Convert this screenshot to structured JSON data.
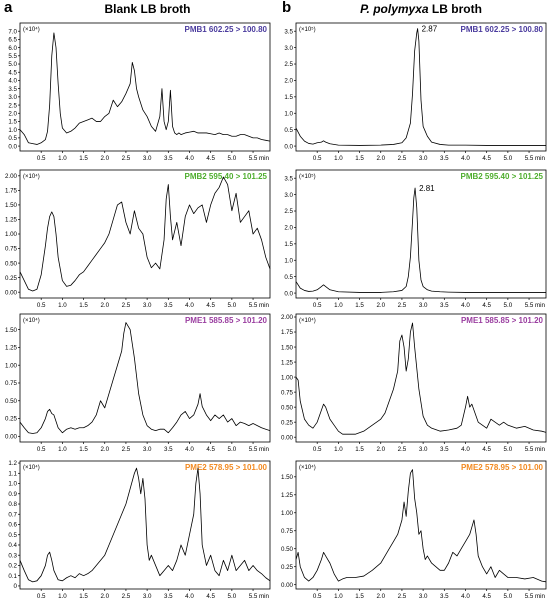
{
  "figure": {
    "panel_a": "a",
    "panel_b": "b",
    "title_a": "Blank LB broth",
    "title_b_italic": "P. polymyxa",
    "title_b_rest": " LB broth",
    "unit_min": "min"
  },
  "colors": {
    "PMB1": "#4b3c9e",
    "PMB2": "#4fae2f",
    "PME1": "#9a3ea0",
    "PME2": "#f28a22",
    "trace": "#000000"
  },
  "chart_data": [
    {
      "type": "line",
      "id": "a1",
      "colorKey": "PMB1",
      "multiplier": "(×10⁴)",
      "label": "PMB1 602.25 > 100.80",
      "xlim": [
        0,
        5.9
      ],
      "ylim": [
        -0.3,
        7.5
      ],
      "yticks": [
        "0.0",
        "0.5",
        "1.0",
        "1.5",
        "2.0",
        "2.5",
        "3.0",
        "3.5",
        "4.0",
        "4.5",
        "5.0",
        "5.5",
        "6.0",
        "6.5",
        "7.0"
      ],
      "xticks": [
        "0.5",
        "1.0",
        "1.5",
        "2.0",
        "2.5",
        "3.0",
        "3.5",
        "4.0",
        "4.5",
        "5.0",
        "5.5"
      ],
      "x": [
        0,
        0.1,
        0.2,
        0.3,
        0.4,
        0.5,
        0.6,
        0.65,
        0.7,
        0.75,
        0.8,
        0.85,
        0.9,
        0.95,
        1.0,
        1.1,
        1.2,
        1.3,
        1.4,
        1.5,
        1.6,
        1.7,
        1.8,
        1.9,
        2.0,
        2.1,
        2.2,
        2.3,
        2.4,
        2.5,
        2.6,
        2.65,
        2.7,
        2.75,
        2.8,
        2.9,
        3.0,
        3.1,
        3.2,
        3.3,
        3.35,
        3.4,
        3.45,
        3.5,
        3.55,
        3.6,
        3.65,
        3.7,
        3.75,
        3.8,
        3.9,
        4.0,
        4.1,
        4.2,
        4.3,
        4.4,
        4.5,
        4.6,
        4.7,
        4.8,
        4.9,
        5.0,
        5.1,
        5.2,
        5.3,
        5.4,
        5.5,
        5.6,
        5.7,
        5.8,
        5.9
      ],
      "y": [
        1.0,
        0.7,
        0.2,
        0.15,
        0.1,
        0.2,
        0.4,
        0.9,
        2.5,
        5.5,
        6.9,
        6.0,
        3.8,
        2.0,
        1.1,
        0.8,
        0.9,
        1.1,
        1.4,
        1.5,
        1.6,
        1.7,
        1.5,
        1.5,
        1.8,
        2.0,
        2.8,
        2.4,
        2.7,
        3.2,
        3.8,
        5.1,
        4.6,
        3.5,
        3.0,
        2.2,
        1.8,
        1.2,
        0.9,
        1.8,
        3.5,
        1.5,
        1.0,
        1.5,
        3.4,
        1.2,
        0.8,
        0.7,
        0.8,
        0.7,
        0.8,
        0.85,
        0.9,
        0.8,
        0.8,
        0.8,
        0.75,
        0.7,
        0.8,
        0.7,
        0.7,
        0.6,
        0.6,
        0.7,
        0.7,
        0.6,
        0.5,
        0.5,
        0.4,
        0.35,
        0.3
      ]
    },
    {
      "type": "line",
      "id": "b1",
      "colorKey": "PMB1",
      "multiplier": "(×10⁵)",
      "label": "PMB1 602.25 > 100.80",
      "xlim": [
        0,
        5.9
      ],
      "ylim": [
        -0.15,
        3.75
      ],
      "yticks": [
        "0.0",
        "0.5",
        "1.0",
        "1.5",
        "2.0",
        "2.5",
        "3.0",
        "3.5"
      ],
      "xticks": [
        "0.5",
        "1.0",
        "1.5",
        "2.0",
        "2.5",
        "3.0",
        "3.5",
        "4.0",
        "4.5",
        "5.0",
        "5.5"
      ],
      "peak_label": "2.87",
      "peak_x": 2.87,
      "peak_y": 3.58,
      "x": [
        0,
        0.1,
        0.2,
        0.3,
        0.4,
        0.5,
        0.6,
        0.65,
        0.7,
        0.8,
        1.0,
        1.5,
        2.0,
        2.3,
        2.5,
        2.6,
        2.7,
        2.75,
        2.8,
        2.85,
        2.87,
        2.9,
        2.95,
        3.0,
        3.05,
        3.1,
        3.2,
        3.4,
        3.6,
        4.0,
        4.5,
        5.0,
        5.5,
        5.9
      ],
      "y": [
        0.55,
        0.3,
        0.15,
        0.08,
        0.06,
        0.1,
        0.12,
        0.16,
        0.12,
        0.07,
        0.03,
        0.02,
        0.03,
        0.05,
        0.1,
        0.25,
        0.7,
        1.6,
        2.9,
        3.45,
        3.58,
        3.2,
        1.4,
        0.6,
        0.45,
        0.3,
        0.12,
        0.05,
        0.03,
        0.03,
        0.02,
        0.02,
        0.02,
        0.02
      ]
    },
    {
      "type": "line",
      "id": "a2",
      "colorKey": "PMB2",
      "multiplier": "(×10⁴)",
      "label": "PMB2 595.40 > 101.25",
      "xlim": [
        0,
        5.9
      ],
      "ylim": [
        -0.1,
        2.1
      ],
      "yticks": [
        "0.00",
        "0.25",
        "0.50",
        "0.75",
        "1.00",
        "1.25",
        "1.50",
        "1.75",
        "2.00"
      ],
      "xticks": [
        "0.5",
        "1.0",
        "1.5",
        "2.0",
        "2.5",
        "3.0",
        "3.5",
        "4.0",
        "4.5",
        "5.0",
        "5.5"
      ],
      "x": [
        0,
        0.1,
        0.2,
        0.3,
        0.4,
        0.5,
        0.6,
        0.65,
        0.7,
        0.75,
        0.8,
        0.85,
        0.9,
        1.0,
        1.1,
        1.2,
        1.3,
        1.4,
        1.5,
        1.6,
        1.7,
        1.8,
        1.9,
        2.0,
        2.1,
        2.2,
        2.3,
        2.4,
        2.5,
        2.6,
        2.7,
        2.8,
        2.9,
        3.0,
        3.1,
        3.2,
        3.3,
        3.4,
        3.45,
        3.5,
        3.55,
        3.6,
        3.7,
        3.8,
        3.9,
        4.0,
        4.1,
        4.2,
        4.3,
        4.4,
        4.5,
        4.6,
        4.7,
        4.8,
        4.9,
        5.0,
        5.1,
        5.2,
        5.3,
        5.4,
        5.5,
        5.6,
        5.7,
        5.8,
        5.9
      ],
      "y": [
        0.35,
        0.2,
        0.05,
        0.02,
        0.05,
        0.3,
        0.8,
        1.1,
        1.3,
        1.38,
        1.3,
        1.0,
        0.6,
        0.2,
        0.1,
        0.12,
        0.2,
        0.3,
        0.35,
        0.45,
        0.55,
        0.65,
        0.75,
        0.85,
        1.0,
        1.25,
        1.5,
        1.55,
        1.2,
        1.0,
        1.4,
        1.1,
        1.0,
        0.6,
        0.42,
        0.5,
        0.4,
        0.9,
        1.6,
        1.85,
        1.3,
        0.9,
        1.2,
        0.8,
        1.3,
        1.5,
        1.35,
        1.45,
        1.5,
        1.2,
        1.5,
        1.7,
        1.8,
        1.98,
        1.85,
        1.4,
        1.7,
        1.2,
        1.3,
        1.4,
        1.0,
        1.1,
        0.9,
        0.6,
        0.4
      ]
    },
    {
      "type": "line",
      "id": "b2",
      "colorKey": "PMB2",
      "multiplier": "(×10⁵)",
      "label": "PMB2 595.40 > 101.25",
      "xlim": [
        0,
        5.9
      ],
      "ylim": [
        -0.15,
        3.75
      ],
      "yticks": [
        "0.0",
        "0.5",
        "1.0",
        "1.5",
        "2.0",
        "2.5",
        "3.0",
        "3.5"
      ],
      "xticks": [
        "0.5",
        "1.0",
        "1.5",
        "2.0",
        "2.5",
        "3.0",
        "3.5",
        "4.0",
        "4.5",
        "5.0",
        "5.5"
      ],
      "peak_label": "2.81",
      "peak_x": 2.81,
      "peak_y": 3.2,
      "x": [
        0,
        0.1,
        0.2,
        0.3,
        0.4,
        0.5,
        0.6,
        0.65,
        0.7,
        0.8,
        1.0,
        1.5,
        2.0,
        2.3,
        2.5,
        2.6,
        2.65,
        2.7,
        2.75,
        2.78,
        2.81,
        2.85,
        2.9,
        2.95,
        3.0,
        3.1,
        3.2,
        3.4,
        3.6,
        4.0,
        4.5,
        5.0,
        5.5,
        5.9
      ],
      "y": [
        0.35,
        0.15,
        0.08,
        0.05,
        0.06,
        0.1,
        0.2,
        0.25,
        0.2,
        0.1,
        0.04,
        0.02,
        0.02,
        0.04,
        0.08,
        0.2,
        0.5,
        1.1,
        2.2,
        2.9,
        3.2,
        2.6,
        1.0,
        0.4,
        0.2,
        0.1,
        0.06,
        0.04,
        0.03,
        0.02,
        0.02,
        0.02,
        0.02,
        0.02
      ]
    },
    {
      "type": "line",
      "id": "a3",
      "colorKey": "PME1",
      "multiplier": "(×10⁴)",
      "label": "PME1 585.85 > 101.20",
      "xlim": [
        0,
        5.9
      ],
      "ylim": [
        -0.08,
        1.72
      ],
      "yticks": [
        "0.00",
        "0.25",
        "0.50",
        "0.75",
        "1.00",
        "1.25",
        "1.50"
      ],
      "xticks": [
        "0.5",
        "1.0",
        "1.5",
        "2.0",
        "2.5",
        "3.0",
        "3.5",
        "4.0",
        "4.5",
        "5.0",
        "5.5"
      ],
      "x": [
        0,
        0.1,
        0.2,
        0.3,
        0.4,
        0.5,
        0.6,
        0.65,
        0.7,
        0.75,
        0.8,
        0.9,
        1.0,
        1.1,
        1.2,
        1.3,
        1.4,
        1.5,
        1.6,
        1.7,
        1.8,
        1.9,
        2.0,
        2.1,
        2.2,
        2.3,
        2.4,
        2.45,
        2.5,
        2.55,
        2.6,
        2.7,
        2.8,
        2.9,
        3.0,
        3.1,
        3.2,
        3.3,
        3.4,
        3.5,
        3.6,
        3.7,
        3.8,
        3.9,
        4.0,
        4.1,
        4.2,
        4.25,
        4.3,
        4.4,
        4.5,
        4.6,
        4.7,
        4.8,
        4.9,
        5.0,
        5.1,
        5.2,
        5.3,
        5.4,
        5.5,
        5.6,
        5.7,
        5.8,
        5.9
      ],
      "y": [
        0.2,
        0.12,
        0.05,
        0.04,
        0.05,
        0.12,
        0.25,
        0.35,
        0.38,
        0.32,
        0.3,
        0.12,
        0.05,
        0.1,
        0.12,
        0.1,
        0.12,
        0.12,
        0.15,
        0.2,
        0.3,
        0.5,
        0.4,
        0.6,
        0.8,
        1.0,
        1.2,
        1.45,
        1.6,
        1.55,
        1.5,
        1.1,
        0.6,
        0.3,
        0.15,
        0.1,
        0.08,
        0.1,
        0.1,
        0.05,
        0.12,
        0.2,
        0.3,
        0.35,
        0.25,
        0.3,
        0.45,
        0.6,
        0.42,
        0.3,
        0.22,
        0.3,
        0.25,
        0.3,
        0.2,
        0.25,
        0.15,
        0.2,
        0.18,
        0.15,
        0.18,
        0.15,
        0.12,
        0.1,
        0.08
      ]
    },
    {
      "type": "line",
      "id": "b3",
      "colorKey": "PME1",
      "multiplier": "(×10⁴)",
      "label": "PME1 585.85 > 101.20",
      "xlim": [
        0,
        5.9
      ],
      "ylim": [
        -0.08,
        2.05
      ],
      "yticks": [
        "0.00",
        "0.25",
        "0.50",
        "0.75",
        "1.00",
        "1.25",
        "1.50",
        "1.75",
        "2.00"
      ],
      "xticks": [
        "0.5",
        "1.0",
        "1.5",
        "2.0",
        "2.5",
        "3.0",
        "3.5",
        "4.0",
        "4.5",
        "5.0",
        "5.5"
      ],
      "x": [
        0,
        0.05,
        0.1,
        0.2,
        0.3,
        0.4,
        0.5,
        0.6,
        0.65,
        0.7,
        0.8,
        0.9,
        1.0,
        1.1,
        1.2,
        1.4,
        1.6,
        1.8,
        2.0,
        2.1,
        2.2,
        2.3,
        2.4,
        2.45,
        2.5,
        2.55,
        2.6,
        2.65,
        2.7,
        2.75,
        2.8,
        2.9,
        3.0,
        3.1,
        3.2,
        3.4,
        3.6,
        3.8,
        3.9,
        4.0,
        4.05,
        4.1,
        4.15,
        4.2,
        4.3,
        4.4,
        4.5,
        4.6,
        4.7,
        4.8,
        4.9,
        5.0,
        5.2,
        5.4,
        5.6,
        5.8,
        5.9
      ],
      "y": [
        1.0,
        0.95,
        0.6,
        0.3,
        0.2,
        0.15,
        0.25,
        0.45,
        0.55,
        0.5,
        0.3,
        0.2,
        0.1,
        0.05,
        0.05,
        0.05,
        0.1,
        0.2,
        0.3,
        0.4,
        0.6,
        0.8,
        1.1,
        1.6,
        1.7,
        1.5,
        1.1,
        1.3,
        1.75,
        1.9,
        1.5,
        0.8,
        0.35,
        0.2,
        0.15,
        0.1,
        0.12,
        0.15,
        0.2,
        0.5,
        0.68,
        0.5,
        0.55,
        0.45,
        0.25,
        0.2,
        0.15,
        0.3,
        0.25,
        0.2,
        0.25,
        0.2,
        0.15,
        0.18,
        0.12,
        0.1,
        0.08
      ]
    },
    {
      "type": "line",
      "id": "a4",
      "colorKey": "PME2",
      "multiplier": "(×10⁴)",
      "label": "PME2 578.95 > 101.00",
      "xlim": [
        0,
        5.9
      ],
      "ylim": [
        -0.03,
        1.22
      ],
      "yticks": [
        "0",
        "0.1",
        "0.2",
        "0.3",
        "0.4",
        "0.5",
        "0.6",
        "0.7",
        "0.8",
        "0.9",
        "1.0",
        "1.1",
        "1.2"
      ],
      "xticks": [
        "0.5",
        "1.0",
        "1.5",
        "2.0",
        "2.5",
        "3.0",
        "3.5",
        "4.0",
        "4.5",
        "5.0",
        "5.5"
      ],
      "x": [
        0,
        0.1,
        0.2,
        0.3,
        0.4,
        0.5,
        0.6,
        0.65,
        0.7,
        0.75,
        0.8,
        0.9,
        1.0,
        1.1,
        1.2,
        1.3,
        1.4,
        1.5,
        1.6,
        1.7,
        1.8,
        1.9,
        2.0,
        2.1,
        2.2,
        2.3,
        2.4,
        2.5,
        2.6,
        2.7,
        2.75,
        2.8,
        2.85,
        2.9,
        2.95,
        3.0,
        3.05,
        3.1,
        3.2,
        3.3,
        3.4,
        3.5,
        3.6,
        3.7,
        3.8,
        3.9,
        4.0,
        4.1,
        4.15,
        4.2,
        4.25,
        4.3,
        4.4,
        4.5,
        4.6,
        4.7,
        4.8,
        4.9,
        5.0,
        5.1,
        5.2,
        5.3,
        5.4,
        5.5,
        5.6,
        5.7,
        5.8,
        5.9
      ],
      "y": [
        0.25,
        0.15,
        0.06,
        0.04,
        0.05,
        0.1,
        0.2,
        0.3,
        0.33,
        0.25,
        0.15,
        0.06,
        0.05,
        0.08,
        0.1,
        0.08,
        0.12,
        0.1,
        0.12,
        0.15,
        0.2,
        0.25,
        0.3,
        0.4,
        0.5,
        0.6,
        0.7,
        0.8,
        0.95,
        1.1,
        1.15,
        1.05,
        0.9,
        1.05,
        0.85,
        0.4,
        0.25,
        0.3,
        0.2,
        0.1,
        0.15,
        0.2,
        0.15,
        0.25,
        0.4,
        0.3,
        0.5,
        0.7,
        1.0,
        1.15,
        0.9,
        0.4,
        0.2,
        0.3,
        0.15,
        0.1,
        0.25,
        0.15,
        0.3,
        0.15,
        0.2,
        0.25,
        0.15,
        0.2,
        0.15,
        0.12,
        0.08,
        0.05
      ]
    },
    {
      "type": "line",
      "id": "b4",
      "colorKey": "PME2",
      "multiplier": "(×10⁴)",
      "label": "PME2 578.95 > 101.00",
      "xlim": [
        0,
        5.9
      ],
      "ylim": [
        -0.06,
        1.72
      ],
      "yticks": [
        "0.00",
        "0.25",
        "0.50",
        "0.75",
        "1.00",
        "1.25",
        "1.50"
      ],
      "xticks": [
        "0.5",
        "1.0",
        "1.5",
        "2.0",
        "2.5",
        "3.0",
        "3.5",
        "4.0",
        "4.5",
        "5.0",
        "5.5"
      ],
      "x": [
        0,
        0.05,
        0.1,
        0.2,
        0.3,
        0.4,
        0.5,
        0.6,
        0.65,
        0.7,
        0.75,
        0.8,
        0.9,
        1.0,
        1.1,
        1.2,
        1.4,
        1.6,
        1.8,
        2.0,
        2.1,
        2.2,
        2.3,
        2.4,
        2.5,
        2.55,
        2.6,
        2.65,
        2.7,
        2.75,
        2.8,
        2.85,
        2.9,
        2.95,
        3.0,
        3.05,
        3.1,
        3.2,
        3.3,
        3.4,
        3.5,
        3.6,
        3.7,
        3.8,
        3.9,
        4.0,
        4.1,
        4.15,
        4.2,
        4.25,
        4.3,
        4.4,
        4.5,
        4.6,
        4.7,
        4.8,
        4.9,
        5.0,
        5.2,
        5.4,
        5.6,
        5.8,
        5.9
      ],
      "y": [
        0.35,
        0.45,
        0.25,
        0.1,
        0.05,
        0.1,
        0.2,
        0.35,
        0.45,
        0.4,
        0.35,
        0.3,
        0.15,
        0.05,
        0.08,
        0.1,
        0.1,
        0.12,
        0.2,
        0.3,
        0.4,
        0.5,
        0.6,
        0.7,
        0.9,
        1.15,
        0.95,
        1.3,
        1.55,
        1.6,
        1.2,
        1.0,
        0.7,
        0.75,
        0.5,
        0.35,
        0.4,
        0.3,
        0.25,
        0.2,
        0.2,
        0.3,
        0.45,
        0.4,
        0.5,
        0.6,
        0.7,
        0.8,
        0.9,
        0.7,
        0.4,
        0.25,
        0.15,
        0.25,
        0.1,
        0.2,
        0.15,
        0.1,
        0.1,
        0.08,
        0.1,
        0.05,
        0.04
      ]
    }
  ]
}
